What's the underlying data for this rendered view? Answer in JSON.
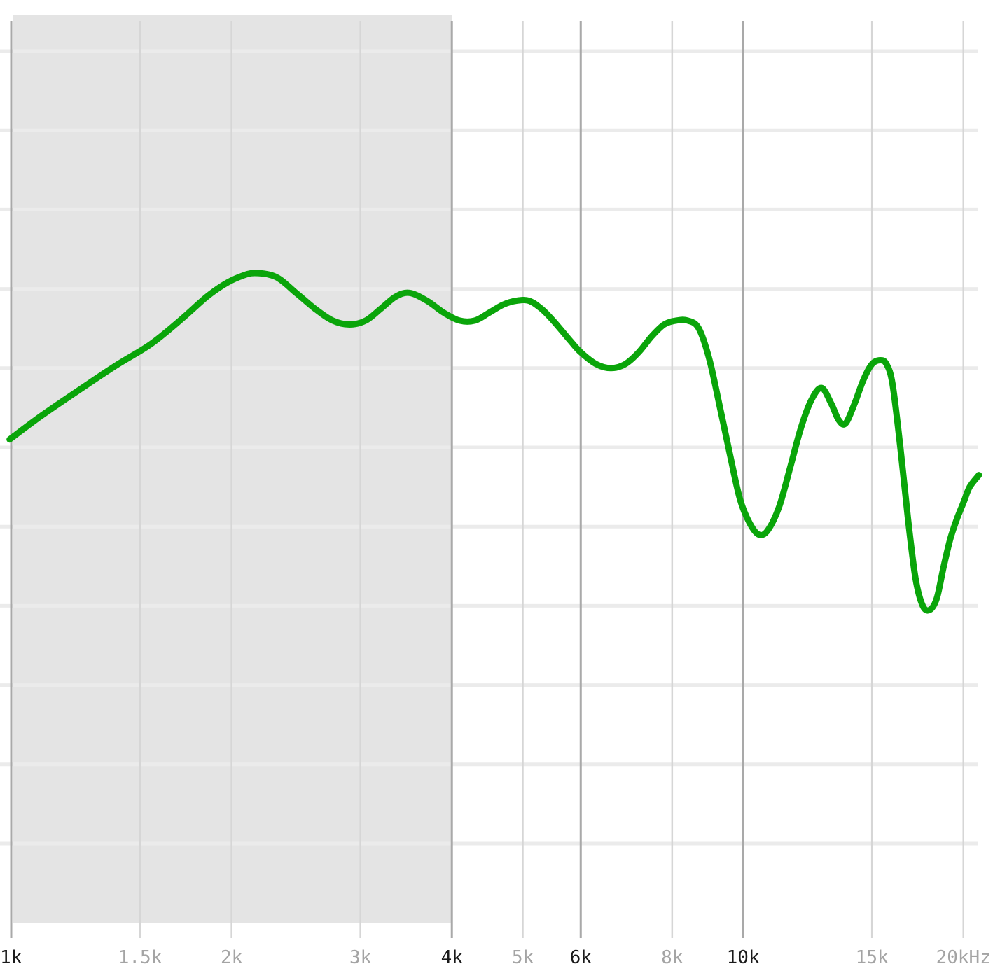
{
  "chart_data": {
    "type": "line",
    "title": "",
    "xlabel": "",
    "ylabel": "",
    "x_scale": "log",
    "xlim": [
      1000,
      22000
    ],
    "ylim": [
      0,
      11.5
    ],
    "grid": true,
    "highlight_band": {
      "from": 1000,
      "to": 4000,
      "color": "#e4e4e4"
    },
    "x_ticks": [
      {
        "value": 1000,
        "label": "1k",
        "emphasis": "major"
      },
      {
        "value": 1500,
        "label": "1.5k",
        "emphasis": "minor"
      },
      {
        "value": 2000,
        "label": "2k",
        "emphasis": "minor"
      },
      {
        "value": 3000,
        "label": "3k",
        "emphasis": "minor"
      },
      {
        "value": 4000,
        "label": "4k",
        "emphasis": "major"
      },
      {
        "value": 5000,
        "label": "5k",
        "emphasis": "minor"
      },
      {
        "value": 6000,
        "label": "6k",
        "emphasis": "major"
      },
      {
        "value": 8000,
        "label": "8k",
        "emphasis": "minor"
      },
      {
        "value": 10000,
        "label": "10k",
        "emphasis": "major"
      },
      {
        "value": 15000,
        "label": "15k",
        "emphasis": "minor"
      },
      {
        "value": 20000,
        "label": "20kHz",
        "emphasis": "minor"
      }
    ],
    "y_gridlines": [
      11,
      10,
      9,
      8,
      7,
      6,
      5,
      4,
      3,
      2,
      1
    ],
    "series": [
      {
        "color": "#0aa50a",
        "x": [
          995,
          1100,
          1250,
          1400,
          1550,
          1700,
          1850,
          1950,
          2050,
          2150,
          2300,
          2450,
          2600,
          2750,
          2900,
          3050,
          3200,
          3350,
          3500,
          3700,
          3900,
          4100,
          4300,
          4500,
          4700,
          4900,
          5100,
          5300,
          5500,
          5800,
          6000,
          6300,
          6600,
          6900,
          7200,
          7500,
          7800,
          8100,
          8400,
          8700,
          9000,
          9300,
          9600,
          9900,
          10200,
          10500,
          10800,
          11200,
          11600,
          12000,
          12400,
          12800,
          13200,
          13500,
          13800,
          14200,
          14600,
          15000,
          15400,
          15700,
          16000,
          16400,
          16800,
          17200,
          17600,
          18000,
          18400,
          18800,
          19200,
          19600,
          20000,
          20400,
          21000
        ],
        "y": [
          6.1,
          6.4,
          6.75,
          7.05,
          7.3,
          7.6,
          7.9,
          8.05,
          8.15,
          8.2,
          8.15,
          7.95,
          7.75,
          7.6,
          7.55,
          7.6,
          7.75,
          7.9,
          7.95,
          7.85,
          7.7,
          7.6,
          7.6,
          7.7,
          7.8,
          7.85,
          7.85,
          7.75,
          7.6,
          7.35,
          7.2,
          7.05,
          7.0,
          7.05,
          7.2,
          7.4,
          7.55,
          7.6,
          7.6,
          7.5,
          7.1,
          6.5,
          5.9,
          5.35,
          5.05,
          4.9,
          4.95,
          5.25,
          5.75,
          6.25,
          6.6,
          6.75,
          6.55,
          6.35,
          6.3,
          6.55,
          6.85,
          7.05,
          7.1,
          7.05,
          6.8,
          6.0,
          5.1,
          4.35,
          4.0,
          3.95,
          4.1,
          4.5,
          4.85,
          5.1,
          5.3,
          5.5,
          5.65
        ]
      }
    ]
  }
}
